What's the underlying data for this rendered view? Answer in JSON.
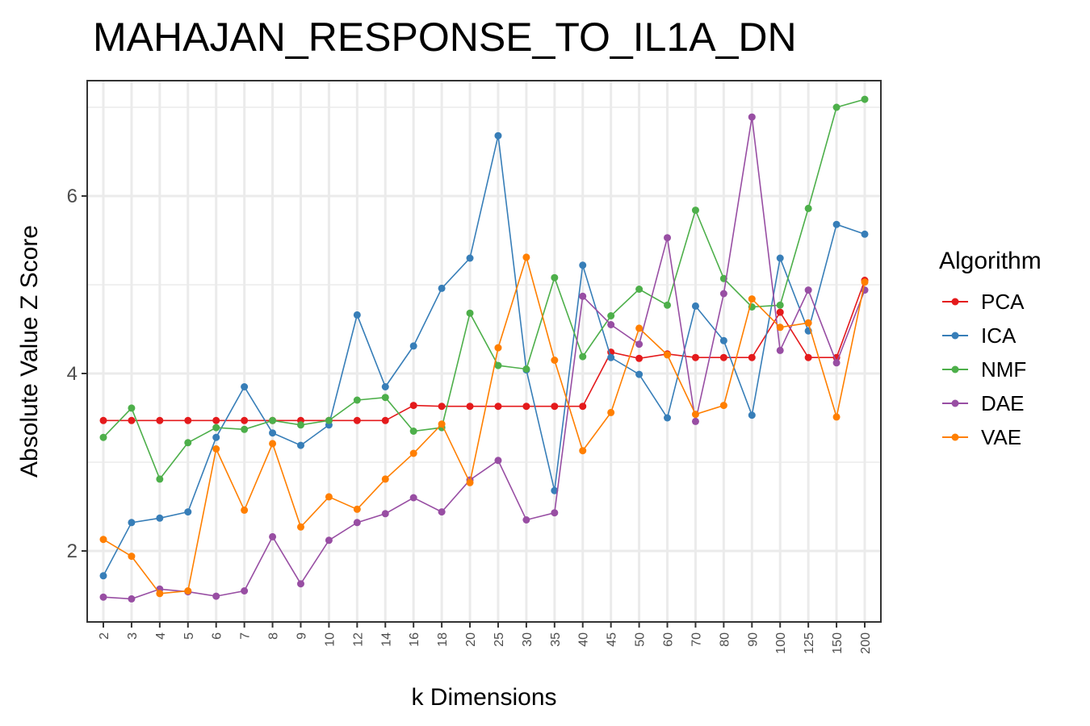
{
  "chart_data": {
    "type": "line",
    "title": "MAHAJAN_RESPONSE_TO_IL1A_DN",
    "xlabel": "k Dimensions",
    "ylabel": "Absolute Value Z Score",
    "categories": [
      "2",
      "3",
      "4",
      "5",
      "6",
      "7",
      "8",
      "9",
      "10",
      "12",
      "14",
      "16",
      "18",
      "20",
      "25",
      "30",
      "35",
      "40",
      "45",
      "50",
      "60",
      "70",
      "80",
      "90",
      "100",
      "125",
      "150",
      "200"
    ],
    "ylim": [
      1.2,
      7.3
    ],
    "yticks": [
      2,
      4,
      6
    ],
    "grid": true,
    "legend_title": "Algorithm",
    "legend_position": "right",
    "series": [
      {
        "name": "PCA",
        "color": "#e41a1c",
        "values": [
          3.47,
          3.47,
          3.47,
          3.47,
          3.47,
          3.47,
          3.47,
          3.47,
          3.47,
          3.47,
          3.47,
          3.64,
          3.63,
          3.63,
          3.63,
          3.63,
          3.63,
          3.63,
          4.24,
          4.17,
          4.22,
          4.18,
          4.18,
          4.18,
          4.69,
          4.18,
          4.18,
          5.05
        ]
      },
      {
        "name": "ICA",
        "color": "#377eb8",
        "values": [
          1.72,
          2.32,
          2.37,
          2.44,
          3.28,
          3.85,
          3.33,
          3.19,
          3.42,
          4.66,
          3.85,
          4.31,
          4.96,
          5.3,
          6.68,
          4.04,
          2.68,
          5.22,
          4.18,
          3.99,
          3.5,
          4.76,
          4.37,
          3.53,
          5.3,
          4.48,
          5.68,
          5.57
        ]
      },
      {
        "name": "NMF",
        "color": "#4daf4a",
        "values": [
          3.28,
          3.61,
          2.81,
          3.22,
          3.39,
          3.37,
          3.47,
          3.42,
          3.47,
          3.7,
          3.73,
          3.35,
          3.39,
          4.68,
          4.09,
          4.05,
          5.08,
          4.19,
          4.65,
          4.95,
          4.77,
          5.84,
          5.07,
          4.75,
          4.77,
          5.86,
          7.0,
          7.09
        ]
      },
      {
        "name": "DAE",
        "color": "#984ea3",
        "values": [
          1.48,
          1.46,
          1.57,
          1.54,
          1.49,
          1.55,
          2.16,
          1.63,
          2.12,
          2.32,
          2.42,
          2.6,
          2.44,
          2.8,
          3.02,
          2.35,
          2.43,
          4.87,
          4.55,
          4.33,
          5.53,
          3.46,
          4.9,
          6.89,
          4.26,
          4.94,
          4.12,
          4.94
        ]
      },
      {
        "name": "VAE",
        "color": "#ff7f00",
        "values": [
          2.13,
          1.94,
          1.52,
          1.55,
          3.15,
          2.46,
          3.21,
          2.27,
          2.61,
          2.47,
          2.81,
          3.1,
          3.43,
          2.77,
          4.29,
          5.31,
          4.15,
          3.13,
          3.56,
          4.51,
          4.21,
          3.54,
          3.64,
          4.84,
          4.52,
          4.57,
          3.51,
          5.03
        ]
      }
    ]
  }
}
